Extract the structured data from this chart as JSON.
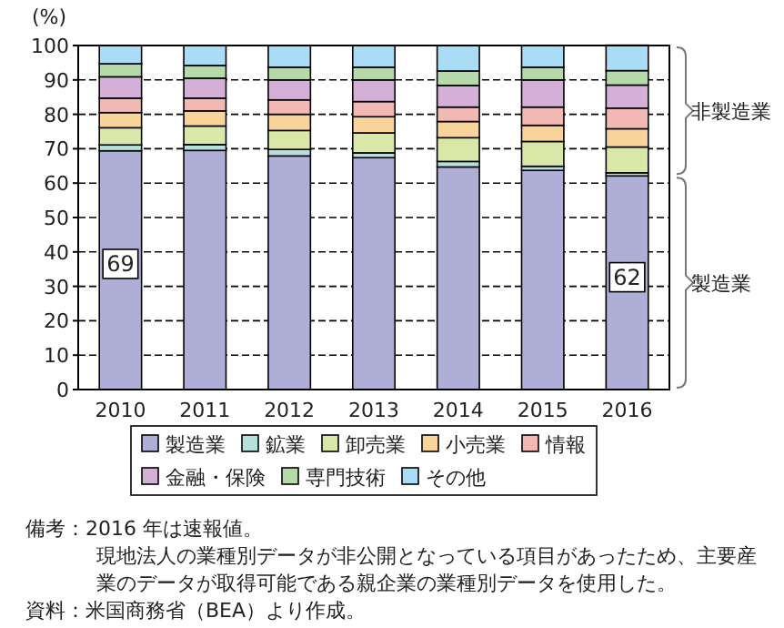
{
  "chart_data": {
    "type": "bar",
    "stacked": true,
    "ylabel": "(%)",
    "categories": [
      "2010",
      "2011",
      "2012",
      "2013",
      "2014",
      "2015",
      "2016"
    ],
    "series": [
      {
        "name": "製造業",
        "color": "#aeaed6",
        "values": [
          69.4,
          69.5,
          67.9,
          67.4,
          64.7,
          63.7,
          62.1
        ],
        "value_labels": [
          "69",
          null,
          null,
          null,
          null,
          null,
          "62"
        ]
      },
      {
        "name": "鉱業",
        "color": "#b6e0dc",
        "values": [
          1.7,
          1.7,
          1.9,
          1.4,
          1.6,
          1.2,
          0.9
        ]
      },
      {
        "name": "卸売業",
        "color": "#d9e8a8",
        "values": [
          5.0,
          5.4,
          5.5,
          5.8,
          6.9,
          7.2,
          7.5
        ]
      },
      {
        "name": "小売業",
        "color": "#f8d49a",
        "values": [
          4.4,
          4.4,
          4.7,
          4.7,
          4.7,
          4.7,
          5.3
        ]
      },
      {
        "name": "情報",
        "color": "#f1b8b4",
        "values": [
          4.2,
          3.7,
          4.2,
          4.4,
          4.2,
          5.3,
          6.0
        ]
      },
      {
        "name": "金融・保険",
        "color": "#d4b0d8",
        "values": [
          6.2,
          5.8,
          5.8,
          6.3,
          6.3,
          7.9,
          6.7
        ]
      },
      {
        "name": "専門技術",
        "color": "#b5d9a8",
        "values": [
          3.8,
          3.7,
          3.7,
          3.7,
          4.2,
          3.7,
          4.2
        ]
      },
      {
        "name": "その他",
        "color": "#aadcf5",
        "values": [
          5.3,
          5.8,
          6.3,
          6.3,
          7.4,
          6.3,
          7.4
        ]
      }
    ],
    "ylim": [
      0,
      100
    ],
    "yticks": [
      0,
      10,
      20,
      30,
      40,
      50,
      60,
      70,
      80,
      90,
      100
    ],
    "grid": "y",
    "legend": "bottom",
    "annotations": [
      "非製造業",
      "製造業",
      "備考：2016 年は速報値。",
      "現地法人の業種別データが非公開となっている項目があったため、主要産業のデータが取得可能である親企業の業種別データを使用した。",
      "資料：米国商務省（BEA）より作成。"
    ]
  }
}
